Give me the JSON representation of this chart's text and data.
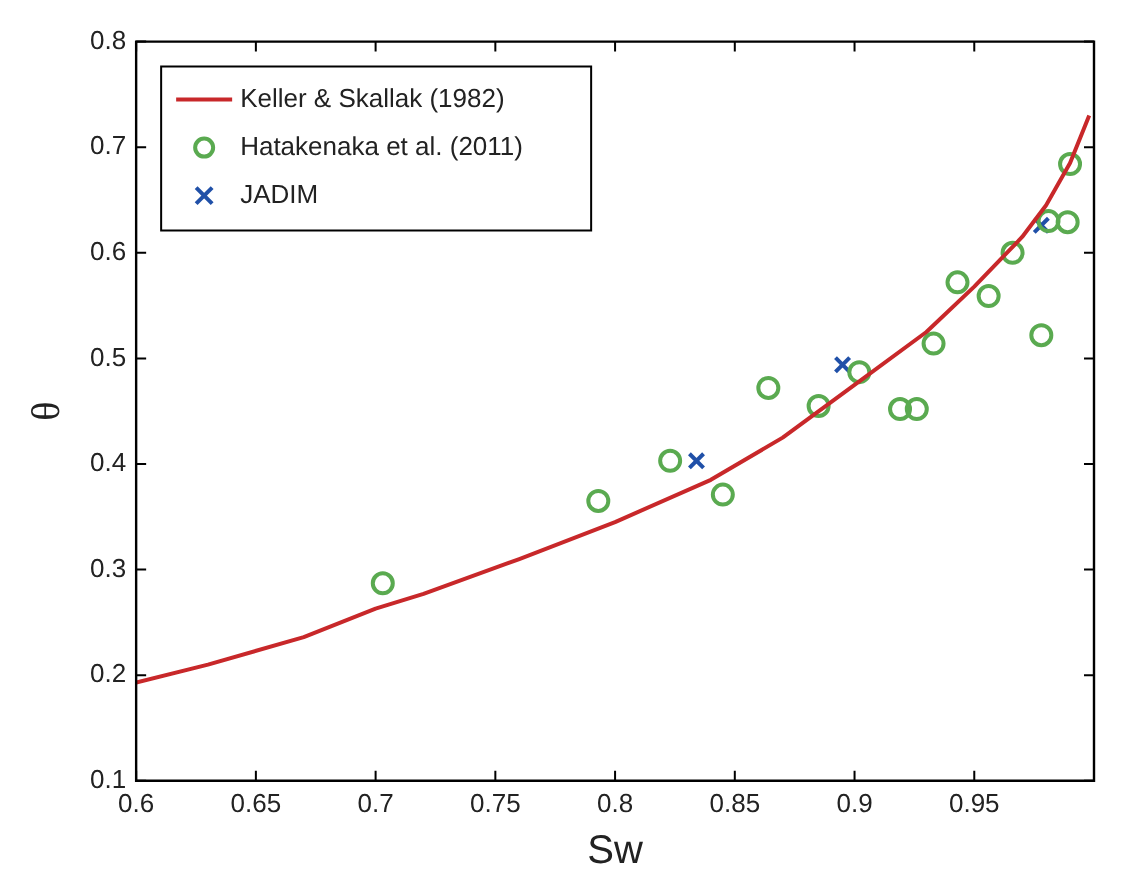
{
  "chart_data": {
    "type": "scatter",
    "xlabel": "Sw",
    "ylabel": "θ",
    "xlim": [
      0.6,
      1.0
    ],
    "xticks": [
      0.6,
      0.65,
      0.7,
      0.75,
      0.8,
      0.85,
      0.9,
      0.95
    ],
    "ylim": [
      0.1,
      0.8
    ],
    "yticks": [
      0.1,
      0.2,
      0.3,
      0.4,
      0.5,
      0.6,
      0.7,
      0.8
    ],
    "grid": false,
    "legend": "top left",
    "series": [
      {
        "name": "Keller & Skallak (1982)",
        "type": "line",
        "marker": "none",
        "color": "#c8282a",
        "x": [
          0.6,
          0.63,
          0.67,
          0.7,
          0.72,
          0.76,
          0.8,
          0.84,
          0.87,
          0.9,
          0.93,
          0.95,
          0.97,
          0.98,
          0.99,
          0.998
        ],
        "values": [
          0.193,
          0.21,
          0.236,
          0.263,
          0.277,
          0.31,
          0.345,
          0.385,
          0.425,
          0.475,
          0.525,
          0.568,
          0.615,
          0.645,
          0.685,
          0.73
        ]
      },
      {
        "name": "Hatakenaka et al. (2011)",
        "type": "scatter",
        "marker": "circle",
        "color": "#5aaa50",
        "x": [
          0.703,
          0.793,
          0.823,
          0.845,
          0.864,
          0.885,
          0.902,
          0.919,
          0.926,
          0.933,
          0.943,
          0.956,
          0.966,
          0.978,
          0.981,
          0.989,
          0.99
        ],
        "values": [
          0.287,
          0.365,
          0.403,
          0.371,
          0.472,
          0.455,
          0.487,
          0.452,
          0.452,
          0.514,
          0.572,
          0.559,
          0.6,
          0.522,
          0.63,
          0.629,
          0.684
        ]
      },
      {
        "name": "JADIM",
        "type": "scatter",
        "marker": "cross",
        "color": "#2050a8",
        "x": [
          0.834,
          0.895,
          0.978
        ],
        "values": [
          0.403,
          0.494,
          0.626
        ]
      }
    ]
  }
}
